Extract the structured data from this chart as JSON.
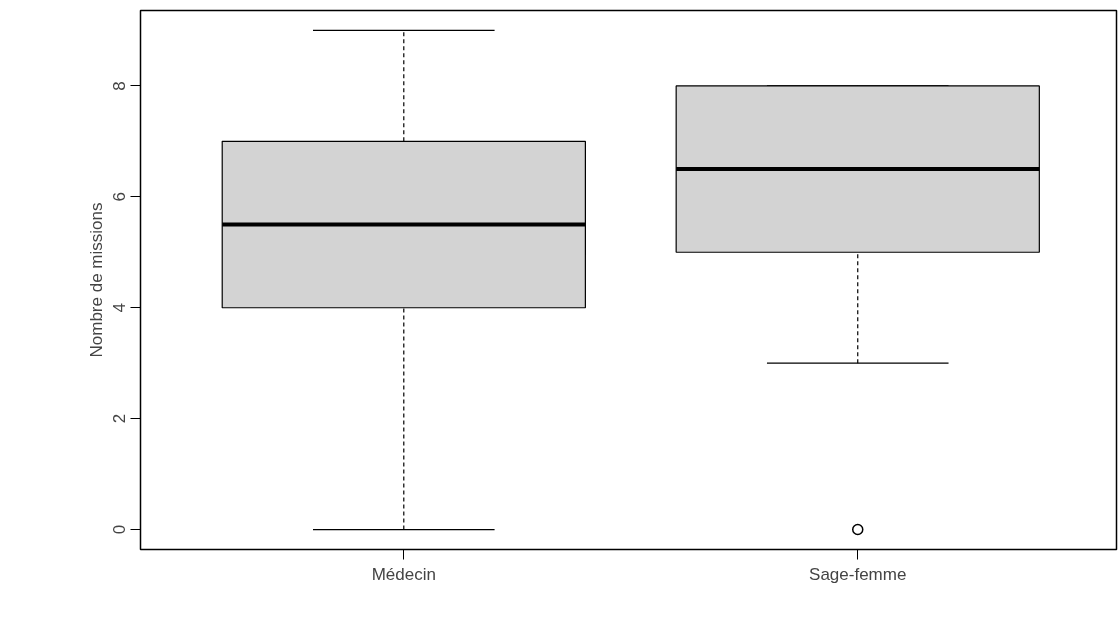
{
  "chart_data": {
    "type": "box",
    "categories": [
      "Médecin",
      "Sage-femme"
    ],
    "ylabel": "Nombre de missions",
    "ylim": [
      -0.36,
      9.36
    ],
    "yticks": [
      0,
      2,
      4,
      6,
      8
    ],
    "grid": false,
    "series": [
      {
        "color": "#d3d3d3",
        "boxes": [
          {
            "low": 0,
            "q1": 4,
            "median": 5.5,
            "q3": 7,
            "high": 9
          },
          {
            "low": 3,
            "q1": 5,
            "median": 6.5,
            "q3": 8,
            "high": 8,
            "outliers": [
              0
            ]
          }
        ]
      }
    ]
  }
}
